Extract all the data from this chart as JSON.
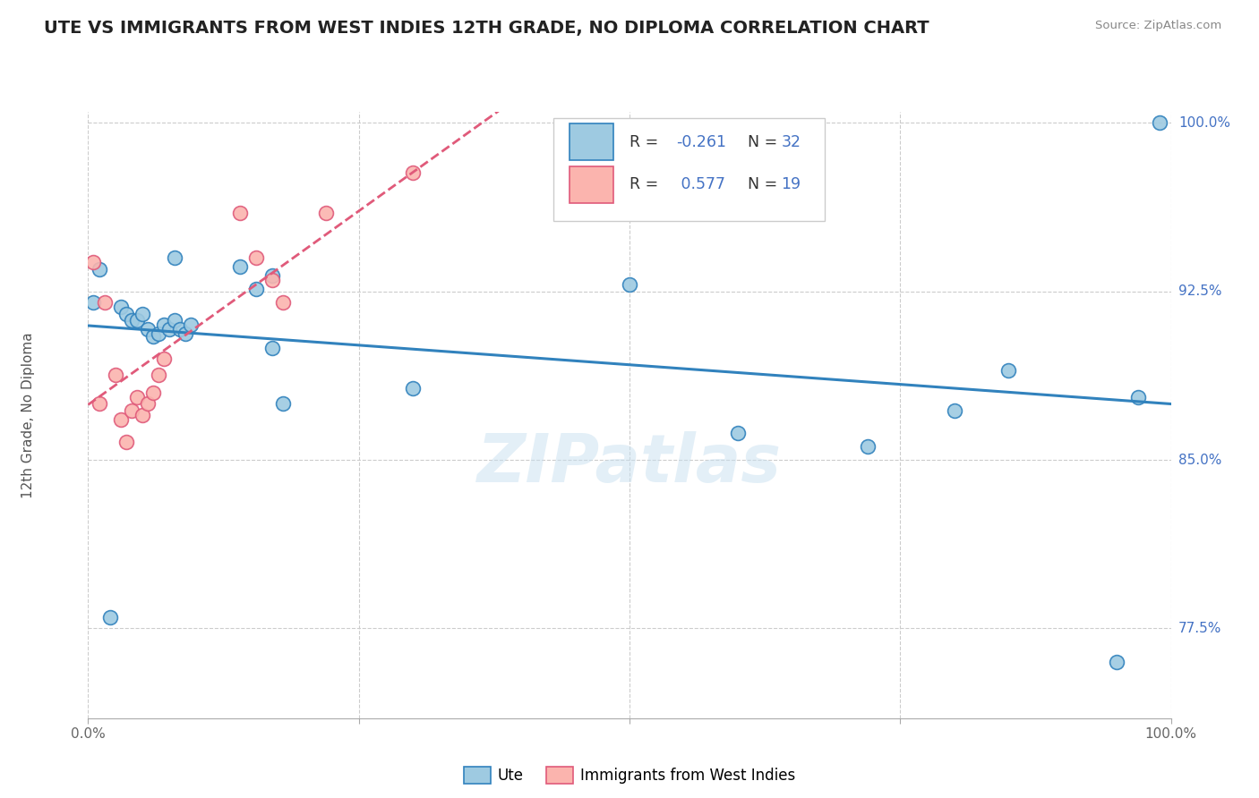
{
  "title": "UTE VS IMMIGRANTS FROM WEST INDIES 12TH GRADE, NO DIPLOMA CORRELATION CHART",
  "source": "Source: ZipAtlas.com",
  "ylabel": "12th Grade, No Diploma",
  "legend_label_ute": "Ute",
  "legend_label_immigrants": "Immigrants from West Indies",
  "r_ute": -0.261,
  "n_ute": 32,
  "r_immigrants": 0.577,
  "n_immigrants": 19,
  "xlim": [
    0.0,
    1.0
  ],
  "ylim": [
    0.735,
    1.005
  ],
  "yticks": [
    0.775,
    0.85,
    0.925,
    1.0
  ],
  "ytick_labels": [
    "77.5%",
    "85.0%",
    "92.5%",
    "100.0%"
  ],
  "xticks": [
    0.0,
    0.25,
    0.5,
    0.75,
    1.0
  ],
  "xtick_labels": [
    "0.0%",
    "",
    "",
    "",
    "100.0%"
  ],
  "blue_scatter_color": "#9ecae1",
  "blue_edge_color": "#3182bd",
  "pink_scatter_color": "#fbb4ae",
  "pink_edge_color": "#e05a7a",
  "blue_line_color": "#3182bd",
  "pink_line_color": "#e05a7a",
  "blue_legend_color": "#9ecae1",
  "pink_legend_color": "#fbb4ae",
  "ute_x": [
    0.005,
    0.01,
    0.08,
    0.14,
    0.155,
    0.17,
    0.03,
    0.035,
    0.04,
    0.045,
    0.05,
    0.055,
    0.06,
    0.065,
    0.07,
    0.075,
    0.08,
    0.085,
    0.09,
    0.095,
    0.17,
    0.18,
    0.3,
    0.5,
    0.6,
    0.72,
    0.8,
    0.85,
    0.95,
    0.97,
    0.02,
    0.99
  ],
  "ute_y": [
    0.92,
    0.935,
    0.94,
    0.936,
    0.926,
    0.932,
    0.918,
    0.915,
    0.912,
    0.912,
    0.915,
    0.908,
    0.905,
    0.906,
    0.91,
    0.908,
    0.912,
    0.908,
    0.906,
    0.91,
    0.9,
    0.875,
    0.882,
    0.928,
    0.862,
    0.856,
    0.872,
    0.89,
    0.76,
    0.878,
    0.78,
    1.0
  ],
  "immigrants_x": [
    0.005,
    0.01,
    0.015,
    0.025,
    0.03,
    0.035,
    0.04,
    0.045,
    0.05,
    0.055,
    0.06,
    0.065,
    0.07,
    0.14,
    0.155,
    0.17,
    0.18,
    0.22,
    0.3
  ],
  "immigrants_y": [
    0.938,
    0.875,
    0.92,
    0.888,
    0.868,
    0.858,
    0.872,
    0.878,
    0.87,
    0.875,
    0.88,
    0.888,
    0.895,
    0.96,
    0.94,
    0.93,
    0.92,
    0.96,
    0.978
  ],
  "watermark": "ZIPatlas",
  "background_color": "#ffffff",
  "grid_color": "#cccccc",
  "text_color_blue": "#4472c4",
  "text_color_dark": "#333333",
  "title_fontsize": 14,
  "axis_label_fontsize": 11,
  "legend_fontsize": 13
}
